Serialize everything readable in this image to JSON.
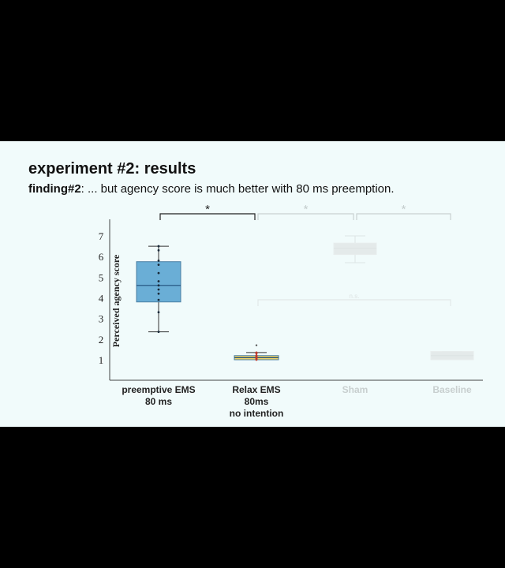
{
  "slide": {
    "title": "experiment #2: results",
    "finding_label": "finding#2",
    "finding_text": ": ... but agency score is much better with 80 ms preemption."
  },
  "chart_data": {
    "type": "box",
    "ylabel": "Perceived agency score",
    "ylim": [
      0,
      7.5
    ],
    "yticks": [
      1,
      2,
      3,
      4,
      5,
      6,
      7
    ],
    "categories": [
      {
        "label_lines": [
          "preemptive EMS",
          "80 ms"
        ],
        "faded": false
      },
      {
        "label_lines": [
          "Relax EMS",
          "80ms",
          "no intention"
        ],
        "faded": false
      },
      {
        "label_lines": [
          "Sham"
        ],
        "faded": true
      },
      {
        "label_lines": [
          "Baseline"
        ],
        "faded": true
      }
    ],
    "boxes": [
      {
        "category": 0,
        "q1": 3.8,
        "median": 4.6,
        "q3": 5.75,
        "whisker_low": 2.35,
        "whisker_high": 6.5,
        "color": "#6aaed6",
        "points": [
          2.35,
          3.3,
          3.9,
          4.2,
          4.4,
          4.6,
          4.8,
          5.2,
          5.6,
          5.8,
          6.3,
          6.5
        ]
      },
      {
        "category": 1,
        "q1": 1.0,
        "median": 1.1,
        "q3": 1.2,
        "whisker_low": 1.0,
        "whisker_high": 1.35,
        "color": "#f2d468",
        "points": [
          1.0,
          1.05,
          1.1,
          1.15,
          1.2,
          1.3,
          1.35
        ],
        "outliers": [
          1.7
        ]
      },
      {
        "category": 2,
        "q1": 6.1,
        "median": 6.4,
        "q3": 6.65,
        "whisker_low": 5.7,
        "whisker_high": 7.0,
        "color": "#e4eaea",
        "faded": true,
        "points": []
      },
      {
        "category": 3,
        "q1": 1.0,
        "median": 1.2,
        "q3": 1.4,
        "whisker_low": 1.0,
        "whisker_high": 1.4,
        "color": "#e4eaea",
        "faded": true,
        "points": []
      }
    ],
    "significance": [
      {
        "from": 0,
        "to": 1,
        "label": "*",
        "level": 2,
        "faded": false
      },
      {
        "from": 1,
        "to": 2,
        "label": "*",
        "level": 2,
        "faded": true
      },
      {
        "from": 2,
        "to": 3,
        "label": "*",
        "level": 2,
        "faded": true
      },
      {
        "from": 1,
        "to": 3,
        "label": "n.s.",
        "level": 1,
        "faded": true
      }
    ]
  }
}
